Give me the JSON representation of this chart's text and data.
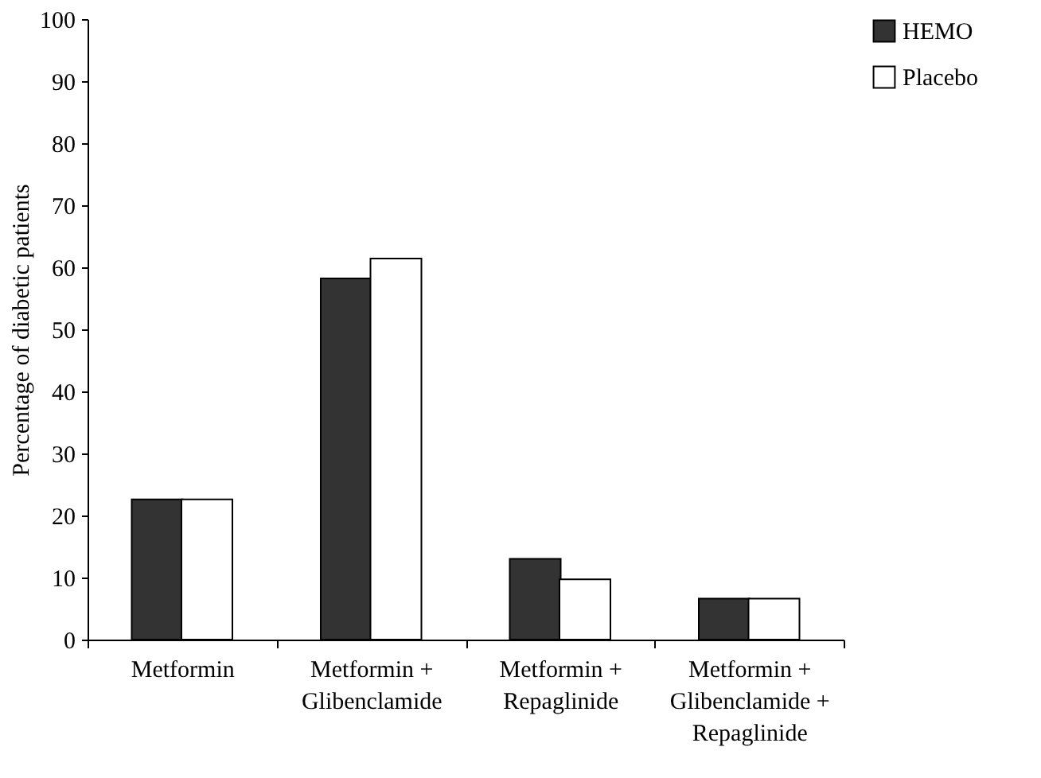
{
  "chart_data": {
    "type": "bar",
    "ylabel": "Percentage of diabetic patients",
    "categories": [
      "Metformin",
      "Metformin +\nGlibenclamide",
      "Metformin +\nRepaglinide",
      "Metformin +\nGlibenclamide +\nRepaglinide"
    ],
    "series": [
      {
        "name": "HEMO",
        "color": "#333333",
        "values": [
          22.6,
          58.2,
          13.0,
          6.6
        ]
      },
      {
        "name": "Placebo",
        "color": "#ffffff",
        "values": [
          22.6,
          61.4,
          9.7,
          6.6
        ]
      }
    ],
    "ylim": [
      0,
      100
    ],
    "yticks": [
      0,
      10,
      20,
      30,
      40,
      50,
      60,
      70,
      80,
      90,
      100
    ],
    "grid": false,
    "legend": "right"
  }
}
